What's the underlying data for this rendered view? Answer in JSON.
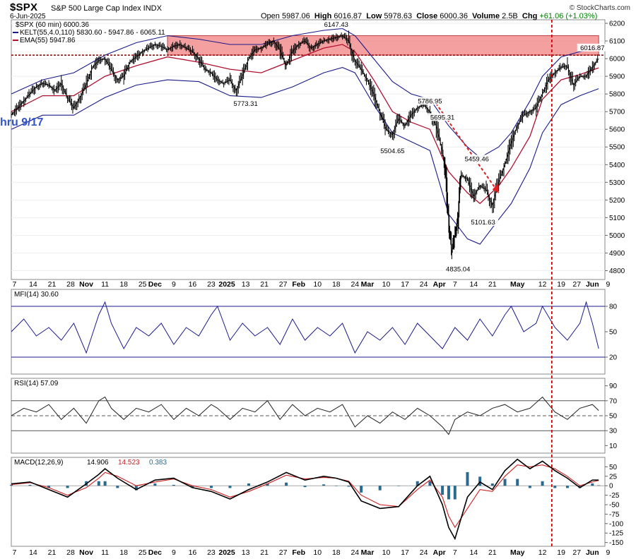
{
  "header": {
    "symbol": "$SPX",
    "description": "S&P 500 Large Cap Index INDX",
    "date": "6-Jun-2025",
    "open_label": "Open",
    "open": "5987.06",
    "high_label": "High",
    "high": "6016.87",
    "low_label": "Low",
    "low": "5978.63",
    "close_label": "Close",
    "close": "6000.36",
    "volume_label": "Volume",
    "volume": "2.5B",
    "chg_label": "Chg",
    "chg": "+61.06 (+1.03%)",
    "copyright": "© StockCharts.com"
  },
  "annotation_left": "hru 9/17",
  "colors": {
    "price": "#000000",
    "kelt": "#1a1a8c",
    "ema": "#b01030",
    "resistance_band": "#f08080",
    "resistance_line": "#8b0000",
    "vertical_marker": "#cc0000",
    "arrow": "#e02020",
    "mfi": "#1a1a8c",
    "mfi_fill": "#6a7bb0",
    "rsi": "#222222",
    "rsi_fill": "#4a7a4a",
    "macd": "#000000",
    "macd_signal": "#cc2020",
    "macd_hist": "#2a6a90"
  },
  "chart_data": [
    {
      "type": "line",
      "panel": "price",
      "legend": [
        {
          "text": "$SPX (60 min) 6000.36"
        },
        {
          "text": "KELT(55,4.0,110) 5830.60 - 5947.86 - 6065.11"
        },
        {
          "text": "EMA(55) 5947.86"
        }
      ],
      "ylim": [
        4750,
        6220
      ],
      "yticks": [
        4800,
        4900,
        5000,
        5100,
        5200,
        5300,
        5400,
        5500,
        5600,
        5700,
        5800,
        5900,
        6000,
        6100,
        6200
      ],
      "xlim": [
        0,
        190
      ],
      "xtick_labels": [
        {
          "x": 1,
          "label": "7"
        },
        {
          "x": 7,
          "label": "14"
        },
        {
          "x": 13,
          "label": "21"
        },
        {
          "x": 19,
          "label": "28"
        },
        {
          "x": 24,
          "label": "Nov"
        },
        {
          "x": 30,
          "label": "11"
        },
        {
          "x": 36,
          "label": "18"
        },
        {
          "x": 42,
          "label": "25"
        },
        {
          "x": 46,
          "label": "Dec"
        },
        {
          "x": 52,
          "label": "9"
        },
        {
          "x": 58,
          "label": "16"
        },
        {
          "x": 64,
          "label": "23"
        },
        {
          "x": 69,
          "label": "2025"
        },
        {
          "x": 75,
          "label": "13"
        },
        {
          "x": 81,
          "label": "21"
        },
        {
          "x": 87,
          "label": "27"
        },
        {
          "x": 92,
          "label": "Feb"
        },
        {
          "x": 98,
          "label": "10"
        },
        {
          "x": 104,
          "label": "18"
        },
        {
          "x": 110,
          "label": "24"
        },
        {
          "x": 114,
          "label": "Mar"
        },
        {
          "x": 120,
          "label": "10"
        },
        {
          "x": 126,
          "label": "17"
        },
        {
          "x": 132,
          "label": "24"
        },
        {
          "x": 137,
          "label": "Apr"
        },
        {
          "x": 142,
          "label": "7"
        },
        {
          "x": 148,
          "label": "14"
        },
        {
          "x": 154,
          "label": "21"
        },
        {
          "x": 162,
          "label": "May"
        },
        {
          "x": 170,
          "label": "12"
        },
        {
          "x": 176,
          "label": "19"
        },
        {
          "x": 181,
          "label": "27"
        },
        {
          "x": 186,
          "label": "Jun"
        },
        {
          "x": 191,
          "label": "9"
        }
      ],
      "series": [
        {
          "name": "$SPX (60 min)",
          "x": [
            0,
            2,
            4,
            6,
            8,
            10,
            12,
            14,
            16,
            18,
            20,
            22,
            24,
            26,
            28,
            30,
            32,
            34,
            36,
            38,
            40,
            42,
            44,
            46,
            48,
            50,
            52,
            54,
            56,
            58,
            60,
            62,
            64,
            66,
            68,
            70,
            72,
            74,
            76,
            78,
            80,
            82,
            84,
            86,
            88,
            90,
            92,
            94,
            96,
            98,
            100,
            102,
            104,
            106,
            108,
            110,
            112,
            114,
            116,
            118,
            120,
            122,
            124,
            126,
            128,
            130,
            132,
            134,
            136,
            138,
            139,
            140,
            141,
            142,
            143,
            144,
            146,
            148,
            150,
            152,
            154,
            156,
            158,
            160,
            162,
            164,
            166,
            168,
            170,
            172,
            174,
            176,
            178,
            180,
            182,
            184,
            186,
            188
          ],
          "y": [
            5680,
            5720,
            5760,
            5800,
            5840,
            5860,
            5850,
            5820,
            5860,
            5780,
            5720,
            5780,
            5850,
            5950,
            5990,
            6000,
            5940,
            5880,
            5900,
            5980,
            6010,
            6040,
            6060,
            6080,
            6070,
            6050,
            6070,
            6080,
            6060,
            6040,
            6000,
            5940,
            5920,
            5880,
            5860,
            5880,
            5820,
            5900,
            6000,
            6050,
            6060,
            6080,
            6100,
            6050,
            5960,
            6040,
            6080,
            6100,
            6060,
            6080,
            6100,
            6110,
            6120,
            6130,
            6100,
            5990,
            5940,
            5880,
            5800,
            5700,
            5600,
            5570,
            5660,
            5620,
            5680,
            5720,
            5740,
            5700,
            5620,
            5480,
            5360,
            5100,
            4900,
            5000,
            5100,
            5340,
            5320,
            5220,
            5280,
            5260,
            5170,
            5300,
            5400,
            5520,
            5620,
            5680,
            5700,
            5720,
            5800,
            5880,
            5920,
            5950,
            5960,
            5850,
            5900,
            5900,
            5950,
            6000
          ]
        },
        {
          "name": "EMA(55)",
          "x": [
            0,
            10,
            20,
            30,
            40,
            50,
            60,
            70,
            80,
            90,
            100,
            106,
            110,
            116,
            122,
            128,
            134,
            140,
            146,
            150,
            156,
            160,
            166,
            170,
            176,
            182,
            188
          ],
          "y": [
            5700,
            5790,
            5790,
            5900,
            5960,
            6010,
            5980,
            5940,
            5920,
            5990,
            6060,
            6080,
            6040,
            5880,
            5700,
            5640,
            5600,
            5360,
            5240,
            5180,
            5280,
            5380,
            5560,
            5770,
            5880,
            5910,
            5948
          ]
        },
        {
          "name": "KELT upper",
          "x": [
            0,
            10,
            20,
            30,
            40,
            50,
            60,
            70,
            80,
            90,
            100,
            106,
            110,
            116,
            122,
            128,
            134,
            140,
            146,
            150,
            156,
            160,
            166,
            170,
            176,
            182,
            188
          ],
          "y": [
            5800,
            5880,
            5920,
            6020,
            6090,
            6130,
            6110,
            6080,
            6080,
            6130,
            6160,
            6170,
            6130,
            6000,
            5870,
            5800,
            5770,
            5620,
            5500,
            5440,
            5500,
            5580,
            5760,
            5900,
            6010,
            6040,
            6065
          ]
        },
        {
          "name": "KELT lower",
          "x": [
            0,
            10,
            20,
            30,
            40,
            50,
            60,
            70,
            80,
            90,
            100,
            106,
            110,
            116,
            122,
            128,
            134,
            140,
            146,
            150,
            156,
            160,
            166,
            170,
            176,
            182,
            188
          ],
          "y": [
            5600,
            5680,
            5680,
            5780,
            5850,
            5880,
            5870,
            5790,
            5780,
            5840,
            5920,
            5950,
            5920,
            5740,
            5580,
            5530,
            5480,
            5120,
            4980,
            4950,
            5090,
            5180,
            5380,
            5580,
            5740,
            5790,
            5830
          ]
        }
      ],
      "resistance_band": [
        6020,
        6130
      ],
      "resistance_line": 6020,
      "annotations": [
        {
          "x": 75,
          "y": 5773.31,
          "label": "5773.31"
        },
        {
          "x": 104,
          "y": 6147.43,
          "label": "6147.43"
        },
        {
          "x": 122,
          "y": 5504.65,
          "label": "5504.65"
        },
        {
          "x": 134,
          "y": 5786.95,
          "label": "5786.95"
        },
        {
          "x": 138,
          "y": 5695.31,
          "label": "5695.31"
        },
        {
          "x": 149,
          "y": 5459.46,
          "label": "5459.46"
        },
        {
          "x": 151,
          "y": 5101.63,
          "label": "5101.63"
        },
        {
          "x": 143,
          "y": 4835.04,
          "label": "4835.04"
        },
        {
          "x": 186,
          "y": 6016.87,
          "label": "6016.87"
        }
      ],
      "vertical_marker_x": 173,
      "arrow": {
        "from": [
          135,
          5770
        ],
        "to": [
          156,
          5240
        ]
      }
    },
    {
      "type": "line",
      "panel": "mfi",
      "legend": [
        {
          "text": "MFI(14) 30.60"
        }
      ],
      "ylim": [
        0,
        100
      ],
      "yticks": [
        20,
        50,
        80
      ],
      "hlines": [
        20,
        80
      ],
      "series": [
        {
          "name": "MFI(14)",
          "x": [
            0,
            4,
            8,
            12,
            16,
            20,
            24,
            28,
            30,
            32,
            36,
            40,
            44,
            48,
            52,
            56,
            60,
            64,
            66,
            70,
            74,
            78,
            82,
            86,
            90,
            94,
            98,
            102,
            106,
            110,
            114,
            118,
            122,
            126,
            130,
            134,
            138,
            142,
            146,
            150,
            154,
            158,
            160,
            164,
            168,
            170,
            174,
            178,
            182,
            184,
            186,
            188
          ],
          "y": [
            50,
            65,
            45,
            55,
            40,
            60,
            25,
            70,
            85,
            60,
            30,
            55,
            45,
            60,
            35,
            55,
            45,
            70,
            80,
            40,
            60,
            45,
            55,
            35,
            65,
            40,
            55,
            45,
            60,
            25,
            50,
            40,
            55,
            35,
            60,
            45,
            30,
            55,
            40,
            65,
            45,
            70,
            80,
            50,
            60,
            80,
            55,
            40,
            60,
            85,
            60,
            30
          ]
        }
      ]
    },
    {
      "type": "line",
      "panel": "rsi",
      "legend": [
        {
          "text": "RSI(14) 57.09"
        }
      ],
      "ylim": [
        0,
        100
      ],
      "yticks": [
        10,
        30,
        50,
        70,
        90
      ],
      "hlines": [
        30,
        50,
        70
      ],
      "series": [
        {
          "name": "RSI(14)",
          "x": [
            0,
            4,
            8,
            12,
            16,
            20,
            24,
            28,
            30,
            32,
            36,
            40,
            44,
            48,
            52,
            56,
            60,
            64,
            66,
            70,
            74,
            78,
            82,
            86,
            90,
            94,
            98,
            102,
            106,
            110,
            114,
            118,
            122,
            126,
            130,
            134,
            138,
            140,
            142,
            146,
            150,
            154,
            158,
            162,
            166,
            170,
            174,
            178,
            182,
            186,
            188
          ],
          "y": [
            50,
            60,
            55,
            65,
            45,
            60,
            40,
            70,
            75,
            60,
            45,
            60,
            55,
            65,
            45,
            60,
            50,
            65,
            60,
            45,
            60,
            55,
            70,
            45,
            65,
            50,
            60,
            55,
            65,
            35,
            50,
            40,
            55,
            45,
            60,
            50,
            35,
            25,
            45,
            55,
            50,
            60,
            65,
            55,
            60,
            75,
            55,
            45,
            60,
            65,
            57
          ]
        }
      ]
    },
    {
      "type": "line",
      "panel": "macd",
      "legend": [
        {
          "text": "MACD(12,26,9)"
        },
        {
          "text": "14.906"
        },
        {
          "text": "14.523"
        },
        {
          "text": "0.383"
        }
      ],
      "ylim": [
        -160,
        75
      ],
      "yticks": [
        -150,
        -125,
        -100,
        -75,
        -50,
        -25,
        0,
        25,
        50
      ],
      "series": [
        {
          "name": "MACD",
          "x": [
            0,
            6,
            12,
            18,
            24,
            28,
            30,
            34,
            40,
            46,
            52,
            58,
            64,
            70,
            76,
            82,
            88,
            94,
            100,
            104,
            108,
            112,
            118,
            124,
            130,
            134,
            138,
            140,
            142,
            146,
            150,
            154,
            158,
            162,
            166,
            170,
            174,
            178,
            182,
            186,
            188
          ],
          "y": [
            5,
            10,
            -10,
            -30,
            5,
            30,
            45,
            20,
            -10,
            15,
            20,
            -5,
            -15,
            -35,
            -10,
            10,
            35,
            15,
            25,
            20,
            10,
            -40,
            -60,
            -55,
            0,
            25,
            -50,
            -110,
            -140,
            -30,
            10,
            -10,
            40,
            70,
            45,
            65,
            40,
            20,
            -5,
            15,
            15
          ]
        },
        {
          "name": "Signal",
          "x": [
            0,
            6,
            12,
            18,
            24,
            28,
            30,
            34,
            40,
            46,
            52,
            58,
            64,
            70,
            76,
            82,
            88,
            94,
            100,
            104,
            108,
            112,
            118,
            124,
            130,
            134,
            138,
            140,
            142,
            146,
            150,
            154,
            158,
            162,
            166,
            170,
            174,
            178,
            182,
            186,
            188
          ],
          "y": [
            3,
            8,
            -5,
            -25,
            -5,
            20,
            35,
            25,
            0,
            10,
            18,
            0,
            -10,
            -30,
            -15,
            5,
            28,
            18,
            22,
            20,
            12,
            -25,
            -50,
            -55,
            -10,
            15,
            -30,
            -80,
            -110,
            -60,
            -10,
            -15,
            25,
            55,
            50,
            55,
            45,
            25,
            0,
            10,
            14
          ]
        }
      ]
    }
  ]
}
